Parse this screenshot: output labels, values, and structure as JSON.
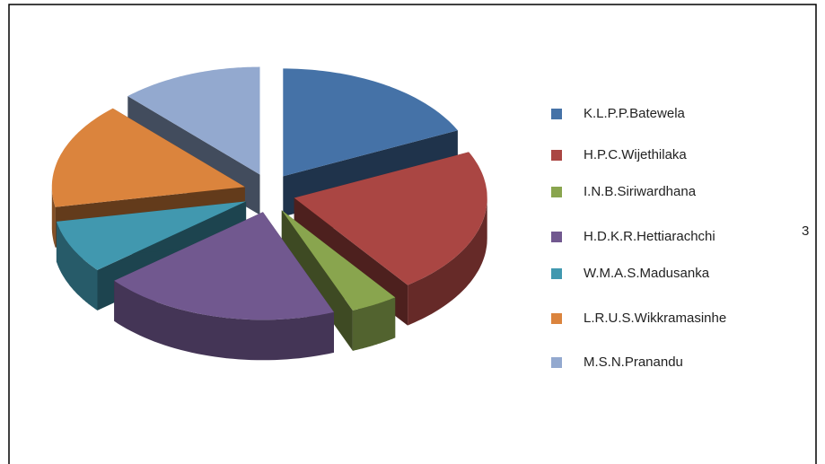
{
  "chart_data": {
    "type": "pie",
    "categories": [
      "K.L.P.P.Batewela",
      "H.P.C.Wijethilaka",
      "I.N.B.Siriwardhana",
      "H.D.K.R.Hettiarachchi",
      "W.M.A.S.Madusanka",
      "L.R.U.S.Wikkramasinhe",
      "M.S.N.Pranandu"
    ],
    "values": [
      18,
      22,
      4,
      20,
      8,
      16,
      12
    ],
    "colors": [
      "#4572a7",
      "#aa4643",
      "#89a54e",
      "#71588f",
      "#4198af",
      "#db843d",
      "#93a9cf"
    ],
    "legend": "right",
    "annotation": "3"
  }
}
